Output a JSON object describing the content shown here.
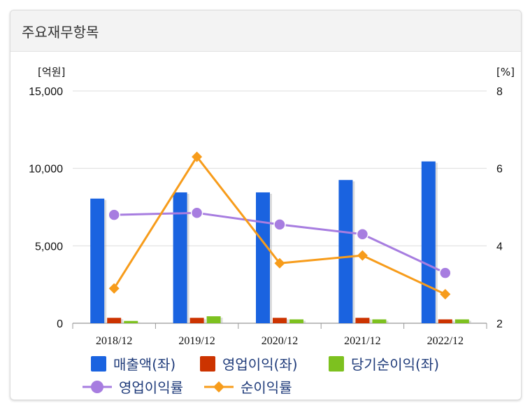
{
  "panel": {
    "title": "주요재무항목"
  },
  "chart_data": {
    "type": "bar",
    "categories": [
      "2018/12",
      "2019/12",
      "2020/12",
      "2021/12",
      "2022/12"
    ],
    "left_axis": {
      "unit_label": "[억원]",
      "range": [
        0,
        15000
      ],
      "ticks": [
        "0",
        "5,000",
        "10,000",
        "15,000"
      ],
      "tick_values": [
        0,
        5000,
        10000,
        15000
      ]
    },
    "right_axis": {
      "unit_label": "[%]",
      "range": [
        2,
        8
      ],
      "ticks": [
        "2",
        "4",
        "6",
        "8"
      ],
      "tick_values": [
        2,
        4,
        6,
        8
      ]
    },
    "series": [
      {
        "name": "매출액(좌)",
        "kind": "bar",
        "axis": "left",
        "color": "#1a63e0",
        "values": [
          8050,
          8450,
          8450,
          9250,
          10450
        ]
      },
      {
        "name": "영업이익(좌)",
        "kind": "bar",
        "axis": "left",
        "color": "#cc3300",
        "values": [
          350,
          350,
          350,
          350,
          250
        ]
      },
      {
        "name": "당기순이익(좌)",
        "kind": "bar",
        "axis": "left",
        "color": "#7dc11f",
        "values": [
          150,
          450,
          250,
          250,
          250
        ]
      },
      {
        "name": "영업이익률",
        "kind": "line",
        "axis": "right",
        "color": "#a77de0",
        "marker": "circle",
        "values": [
          4.8,
          4.85,
          4.55,
          4.3,
          3.3
        ]
      },
      {
        "name": "순이익률",
        "kind": "line",
        "axis": "right",
        "color": "#f79c1b",
        "marker": "diamond",
        "values": [
          2.9,
          6.3,
          3.55,
          3.75,
          2.75
        ]
      }
    ],
    "grid": true,
    "legend": "bottom"
  }
}
